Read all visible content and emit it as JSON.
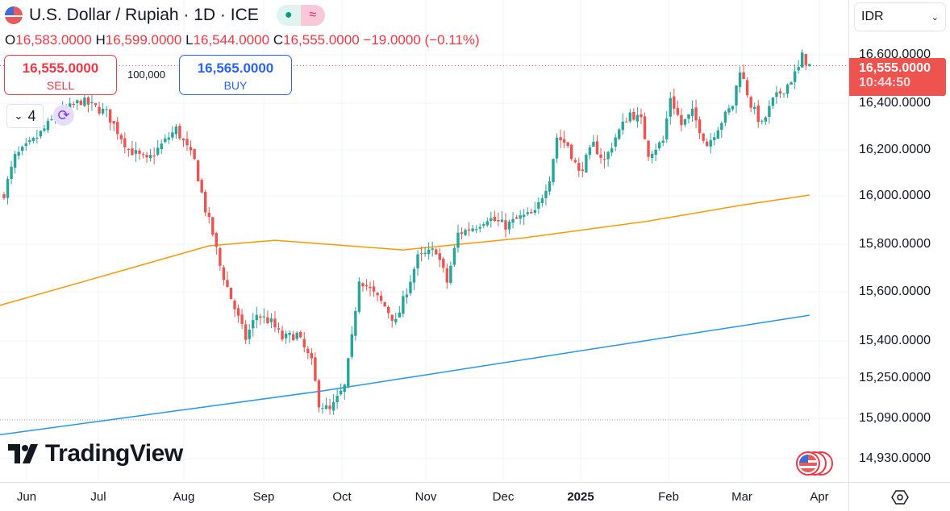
{
  "header": {
    "title": "U.S. Dollar / Rupiah · 1D · ICE",
    "status_market": "●",
    "status_delay": "≈"
  },
  "ohlc": {
    "o_label": "O",
    "o": "16,583.0000",
    "h_label": "H",
    "h": "16,599.0000",
    "l_label": "L",
    "l": "16,544.0000",
    "c_label": "C",
    "c": "16,555.0000",
    "change": "−19.0000 (−0.11%)"
  },
  "trade": {
    "sell_price": "16,555.0000",
    "sell_label": "SELL",
    "buy_price": "16,565.0000",
    "buy_label": "BUY",
    "quantity": "100,000"
  },
  "indicators": {
    "count": "4"
  },
  "currency": {
    "value": "IDR"
  },
  "price_tag": {
    "price": "16,555.0000",
    "countdown": "10:44:50"
  },
  "logo": "TradingView",
  "colors": {
    "up": "#26a69a",
    "down": "#ef5350",
    "ma_orange": "#ff9800",
    "ma_blue": "#2196f3"
  },
  "chart_data": {
    "type": "candlestick",
    "y_ticks": [
      "16,600.0000",
      "16,400.0000",
      "16,200.0000",
      "16,000.0000",
      "15,800.0000",
      "15,600.0000",
      "15,400.0000",
      "15,250.0000",
      "15,090.0000",
      "14,930.0000"
    ],
    "x_ticks": [
      "Jun",
      "Jul",
      "Aug",
      "Sep",
      "Oct",
      "Nov",
      "Dec",
      "2025",
      "Feb",
      "Mar",
      "Apr"
    ],
    "close_waypoints": [
      [
        0,
        16027
      ],
      [
        3,
        16177
      ],
      [
        8,
        16243
      ],
      [
        14,
        16343
      ],
      [
        21,
        16410
      ],
      [
        28,
        16360
      ],
      [
        34,
        16210
      ],
      [
        39,
        16160
      ],
      [
        43,
        16227
      ],
      [
        47,
        16293
      ],
      [
        52,
        16160
      ],
      [
        55,
        15960
      ],
      [
        57,
        15860
      ],
      [
        59,
        15727
      ],
      [
        62,
        15593
      ],
      [
        66,
        15427
      ],
      [
        69,
        15527
      ],
      [
        73,
        15493
      ],
      [
        76,
        15427
      ],
      [
        80,
        15443
      ],
      [
        84,
        15327
      ],
      [
        86,
        15160
      ],
      [
        89,
        15127
      ],
      [
        93,
        15227
      ],
      [
        95,
        15427
      ],
      [
        97,
        15677
      ],
      [
        100,
        15627
      ],
      [
        104,
        15560
      ],
      [
        107,
        15493
      ],
      [
        110,
        15627
      ],
      [
        113,
        15760
      ],
      [
        118,
        15793
      ],
      [
        121,
        15660
      ],
      [
        124,
        15860
      ],
      [
        129,
        15893
      ],
      [
        132,
        15927
      ],
      [
        137,
        15893
      ],
      [
        141,
        15927
      ],
      [
        145,
        15943
      ],
      [
        149,
        16093
      ],
      [
        151,
        16260
      ],
      [
        154,
        16227
      ],
      [
        157,
        16110
      ],
      [
        161,
        16227
      ],
      [
        164,
        16160
      ],
      [
        167,
        16260
      ],
      [
        171,
        16360
      ],
      [
        174,
        16327
      ],
      [
        176,
        16193
      ],
      [
        180,
        16243
      ],
      [
        182,
        16427
      ],
      [
        185,
        16310
      ],
      [
        188,
        16360
      ],
      [
        192,
        16227
      ],
      [
        196,
        16327
      ],
      [
        199,
        16393
      ],
      [
        201,
        16543
      ],
      [
        204,
        16393
      ],
      [
        207,
        16310
      ],
      [
        210,
        16410
      ],
      [
        214,
        16477
      ],
      [
        217,
        16543
      ],
      [
        218,
        16593
      ],
      [
        220,
        16555
      ]
    ],
    "ma_orange": [
      [
        -2,
        15560
      ],
      [
        56,
        15810
      ],
      [
        74,
        15833
      ],
      [
        109,
        15793
      ],
      [
        142,
        15843
      ],
      [
        175,
        15910
      ],
      [
        201,
        15977
      ],
      [
        220,
        16020
      ]
    ],
    "ma_blue": [
      [
        -2,
        15027
      ],
      [
        87,
        15210
      ],
      [
        220,
        15523
      ]
    ],
    "last_price": 16555,
    "low_line": 15090
  }
}
